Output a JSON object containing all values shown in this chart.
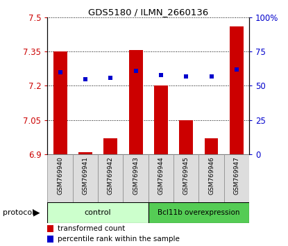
{
  "title": "GDS5180 / ILMN_2660136",
  "samples": [
    "GSM769940",
    "GSM769941",
    "GSM769942",
    "GSM769943",
    "GSM769944",
    "GSM769945",
    "GSM769946",
    "GSM769947"
  ],
  "transformed_counts": [
    7.35,
    6.91,
    6.97,
    7.355,
    7.2,
    7.05,
    6.97,
    7.46
  ],
  "percentile_ranks": [
    60,
    55,
    56,
    61,
    58,
    57,
    57,
    62
  ],
  "ylim_left": [
    6.9,
    7.5
  ],
  "yticks_left": [
    6.9,
    7.05,
    7.2,
    7.35,
    7.5
  ],
  "ylim_right": [
    0,
    100
  ],
  "yticks_right": [
    0,
    25,
    50,
    75,
    100
  ],
  "yticklabels_right": [
    "0",
    "25",
    "50",
    "75",
    "100%"
  ],
  "bar_color": "#cc0000",
  "dot_color": "#0000cc",
  "grid_color": "black",
  "bar_width": 0.55,
  "control_group": [
    0,
    1,
    2,
    3
  ],
  "treatment_group": [
    4,
    5,
    6,
    7
  ],
  "control_label": "control",
  "treatment_label": "Bcl11b overexpression",
  "control_color": "#ccffcc",
  "treatment_color": "#55cc55",
  "protocol_label": "protocol",
  "legend_bar_label": "transformed count",
  "legend_dot_label": "percentile rank within the sample",
  "sample_bg_color": "#dddddd",
  "plot_bg": "#ffffff",
  "fig_bg": "#ffffff"
}
